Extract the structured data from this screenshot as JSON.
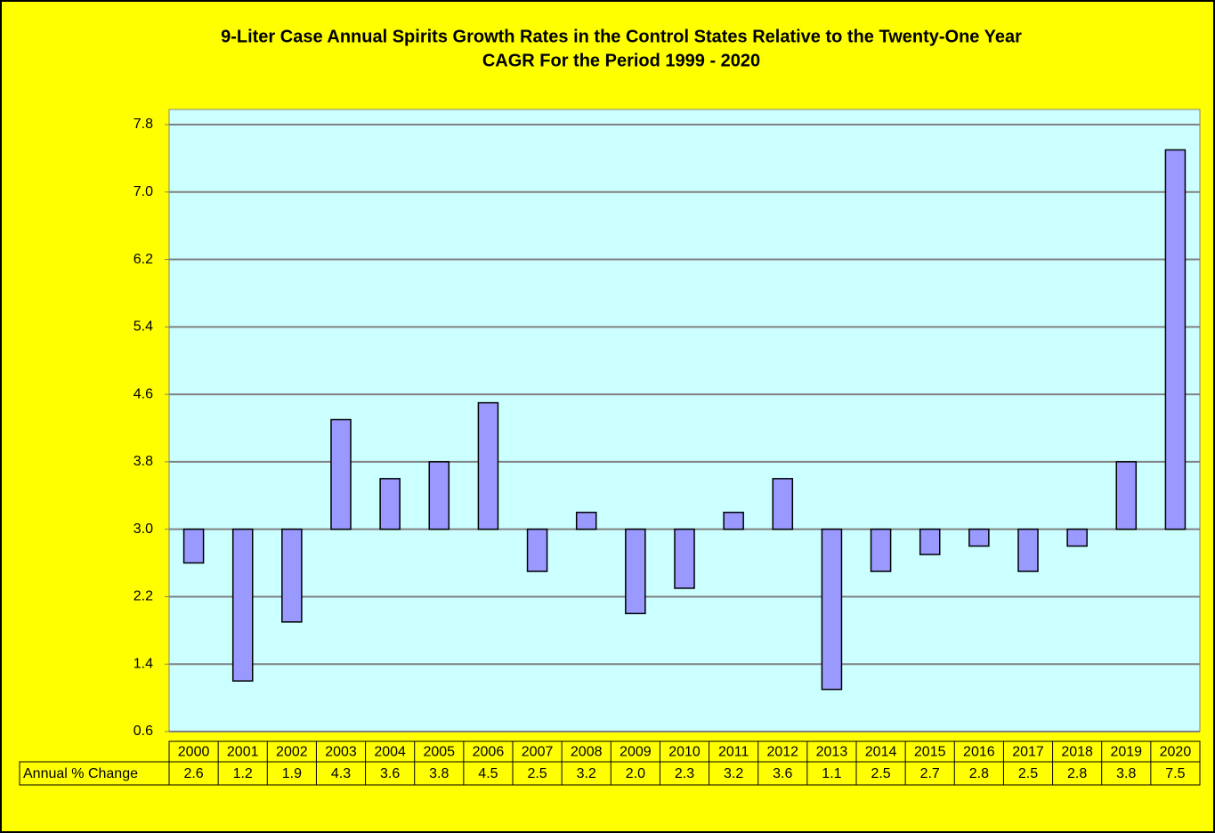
{
  "chart_data": {
    "type": "bar",
    "title": "9-Liter Case Annual Spirits Growth Rates in the Control States Relative to the Twenty-One Year",
    "subtitle": "CAGR For the Period 1999 - 2020",
    "categories": [
      "2000",
      "2001",
      "2002",
      "2003",
      "2004",
      "2005",
      "2006",
      "2007",
      "2008",
      "2009",
      "2010",
      "2011",
      "2012",
      "2013",
      "2014",
      "2015",
      "2016",
      "2017",
      "2018",
      "2019",
      "2020"
    ],
    "series": [
      {
        "name": "Annual % Change",
        "color": "#9999ff",
        "values": [
          2.6,
          1.2,
          1.9,
          4.3,
          3.6,
          3.8,
          4.5,
          2.5,
          3.2,
          2.0,
          2.3,
          3.2,
          3.6,
          1.1,
          2.5,
          2.7,
          2.8,
          2.5,
          2.8,
          3.8,
          7.5
        ],
        "value_labels": [
          "2.6",
          "1.2",
          "1.9",
          "4.3",
          "3.6",
          "3.8",
          "4.5",
          "2.5",
          "3.2",
          "2.0",
          "2.3",
          "3.2",
          "3.6",
          "1.1",
          "2.5",
          "2.7",
          "2.8",
          "2.5",
          "2.8",
          "3.8",
          "7.5"
        ]
      }
    ],
    "base": 3,
    "ylim": [
      0.6,
      7.8
    ],
    "yticks": [
      0.6,
      1.4,
      2.2,
      {
        "value": 3,
        "label": "3.0"
      },
      3.8,
      4.6,
      5.4,
      6.2,
      {
        "value": 7,
        "label": "7.0"
      },
      7.8
    ],
    "grid": true
  }
}
